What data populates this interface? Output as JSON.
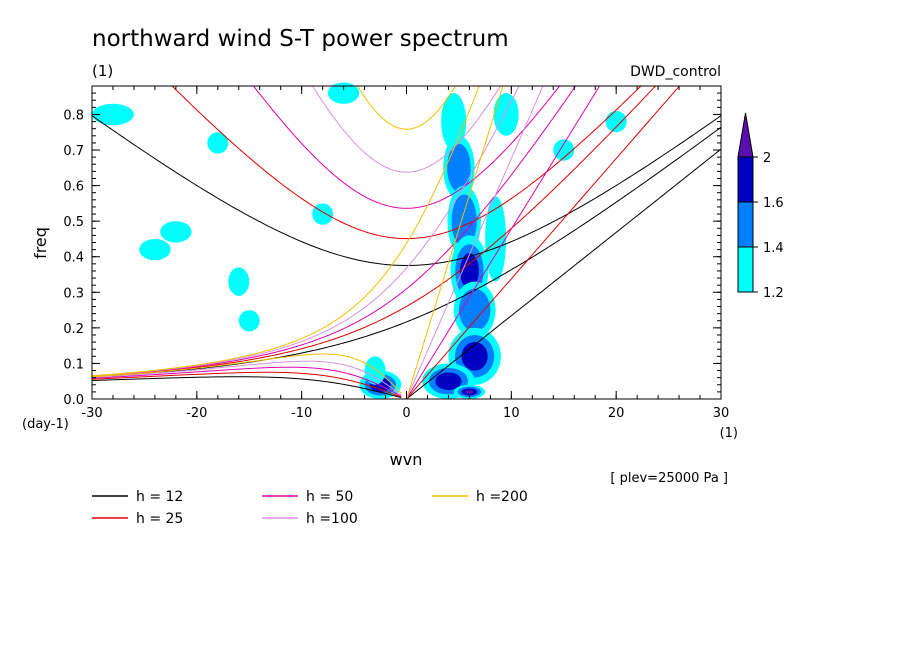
{
  "chart_data": {
    "type": "line",
    "title": "northward wind S-T power spectrum",
    "subtitle_left": "(1)",
    "subtitle_right": "DWD_control",
    "xlabel": "wvn",
    "ylabel": "freq",
    "x_unit": "(1)",
    "y_unit": "(day-1)",
    "annotation": "[ plev=25000 Pa ]",
    "xlim": [
      -30,
      30
    ],
    "ylim": [
      0,
      0.88
    ],
    "xticks": [
      -30,
      -20,
      -10,
      0,
      10,
      20,
      30
    ],
    "xtick_labels": [
      "-30",
      "-20",
      "-10",
      "0",
      "10",
      "20",
      "30"
    ],
    "yticks": [
      0,
      0.1,
      0.2,
      0.3,
      0.4,
      0.5,
      0.6,
      0.7,
      0.8
    ],
    "ytick_labels": [
      "0.0",
      "0.1",
      "0.2",
      "0.3",
      "0.4",
      "0.5",
      "0.6",
      "0.7",
      "0.8"
    ],
    "colorbar": {
      "levels": [
        1.2,
        1.4,
        1.6,
        2
      ],
      "labels": [
        "1.2",
        "1.4",
        "1.6",
        "2"
      ],
      "colors": [
        "#00ffff",
        "#0080ff",
        "#0000c0",
        "#5a10b0"
      ]
    },
    "series": [
      {
        "name": "h = 12",
        "h": 12,
        "color": "#000000"
      },
      {
        "name": "h = 25",
        "h": 25,
        "color": "#e00000"
      },
      {
        "name": "h = 50",
        "h": 50,
        "color": "#e000b0"
      },
      {
        "name": "h =100",
        "h": 100,
        "color": "#d890e0"
      },
      {
        "name": "h =200",
        "h": 200,
        "color": "#f0c000"
      }
    ],
    "contours": [
      {
        "x": 4.5,
        "y": 0.78,
        "rx": 1.2,
        "ry": 0.08,
        "level": 1
      },
      {
        "x": 5.0,
        "y": 0.65,
        "rx": 1.5,
        "ry": 0.09,
        "level": 2
      },
      {
        "x": 5.5,
        "y": 0.5,
        "rx": 1.6,
        "ry": 0.1,
        "level": 2
      },
      {
        "x": 6.0,
        "y": 0.36,
        "rx": 1.8,
        "ry": 0.1,
        "level": 3
      },
      {
        "x": 6.5,
        "y": 0.25,
        "rx": 2.0,
        "ry": 0.08,
        "level": 2
      },
      {
        "x": 6.5,
        "y": 0.12,
        "rx": 2.5,
        "ry": 0.08,
        "level": 3
      },
      {
        "x": 4.0,
        "y": 0.05,
        "rx": 2.5,
        "ry": 0.05,
        "level": 3
      },
      {
        "x": -2.5,
        "y": 0.04,
        "rx": 2.0,
        "ry": 0.04,
        "level": 3
      },
      {
        "x": -3.0,
        "y": 0.08,
        "rx": 1.0,
        "ry": 0.04,
        "level": 1
      },
      {
        "x": 8.5,
        "y": 0.45,
        "rx": 1.0,
        "ry": 0.12,
        "level": 1
      },
      {
        "x": 9.5,
        "y": 0.8,
        "rx": 1.2,
        "ry": 0.06,
        "level": 1
      },
      {
        "x": 15.0,
        "y": 0.7,
        "rx": 1.0,
        "ry": 0.03,
        "level": 1
      },
      {
        "x": -28.0,
        "y": 0.8,
        "rx": 2.0,
        "ry": 0.03,
        "level": 1
      },
      {
        "x": -22.0,
        "y": 0.47,
        "rx": 1.5,
        "ry": 0.03,
        "level": 1
      },
      {
        "x": -24.0,
        "y": 0.42,
        "rx": 1.5,
        "ry": 0.03,
        "level": 1
      },
      {
        "x": -15.0,
        "y": 0.22,
        "rx": 1.0,
        "ry": 0.03,
        "level": 1
      },
      {
        "x": -16.0,
        "y": 0.33,
        "rx": 1.0,
        "ry": 0.04,
        "level": 1
      },
      {
        "x": -6.0,
        "y": 0.86,
        "rx": 1.5,
        "ry": 0.03,
        "level": 1
      },
      {
        "x": -18.0,
        "y": 0.72,
        "rx": 1.0,
        "ry": 0.03,
        "level": 1
      },
      {
        "x": -8.0,
        "y": 0.52,
        "rx": 1.0,
        "ry": 0.03,
        "level": 1
      },
      {
        "x": 20.0,
        "y": 0.78,
        "rx": 1.0,
        "ry": 0.03,
        "level": 1
      },
      {
        "x": 6.0,
        "y": 0.02,
        "rx": 1.5,
        "ry": 0.02,
        "level": 4
      }
    ]
  }
}
